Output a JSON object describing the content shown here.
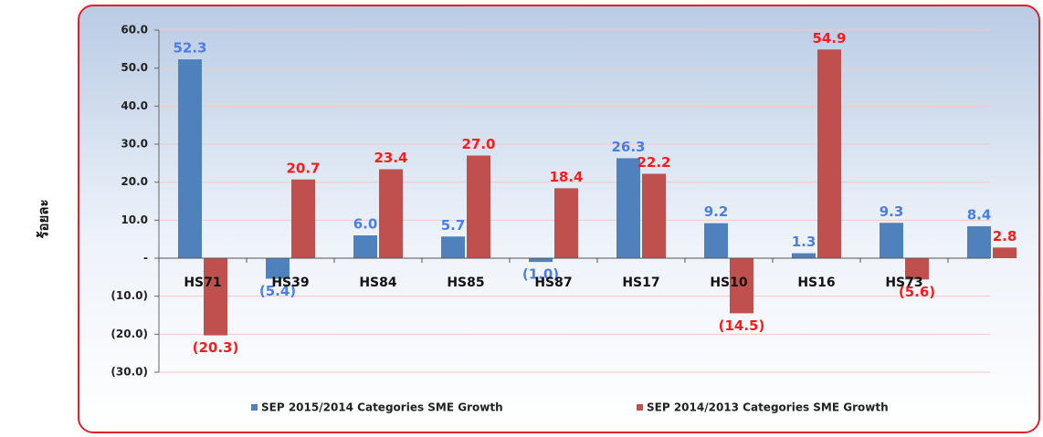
{
  "chart_data": {
    "type": "bar",
    "y_axis_label": "ร้อยละ",
    "categories": [
      "HS71",
      "HS39",
      "HS84",
      "HS85",
      "HS87",
      "HS17",
      "HS10",
      "HS16",
      "HS73",
      null
    ],
    "series": [
      {
        "name": "SEP 2015/2014 Categories SME Growth",
        "color": "#4f81bd",
        "label_color": "#4a7ee6",
        "values": [
          52.3,
          -5.4,
          6.0,
          5.7,
          -1.0,
          26.3,
          9.2,
          1.3,
          9.3,
          8.4
        ],
        "value_labels": [
          "52.3",
          "(5.4)",
          "6.0",
          "5.7",
          "(1.0)",
          "26.3",
          "9.2",
          "1.3",
          "9.3",
          "8.4"
        ]
      },
      {
        "name": "SEP 2014/2013 Categories SME Growth",
        "color": "#c0504d",
        "label_color": "#ff1a1a",
        "values": [
          -20.3,
          20.7,
          23.4,
          27.0,
          18.4,
          22.2,
          -14.5,
          54.9,
          -5.6,
          2.8
        ],
        "value_labels": [
          "(20.3)",
          "20.7",
          "23.4",
          "27.0",
          "18.4",
          "22.2",
          "(14.5)",
          "54.9",
          "(5.6)",
          "2.8"
        ]
      }
    ],
    "ylim": [
      -30,
      60
    ],
    "yticks": [
      {
        "value": 60,
        "label": "60.0"
      },
      {
        "value": 50,
        "label": "50.0"
      },
      {
        "value": 40,
        "label": "40.0"
      },
      {
        "value": 30,
        "label": "30.0"
      },
      {
        "value": 20,
        "label": "20.0"
      },
      {
        "value": 10,
        "label": "10.0"
      },
      {
        "value": 0,
        "label": "-"
      },
      {
        "value": -10,
        "label": "(10.0)"
      },
      {
        "value": -20,
        "label": "(20.0)"
      },
      {
        "value": -30,
        "label": "(30.0)"
      }
    ],
    "grid": true,
    "legend": "bottom"
  }
}
